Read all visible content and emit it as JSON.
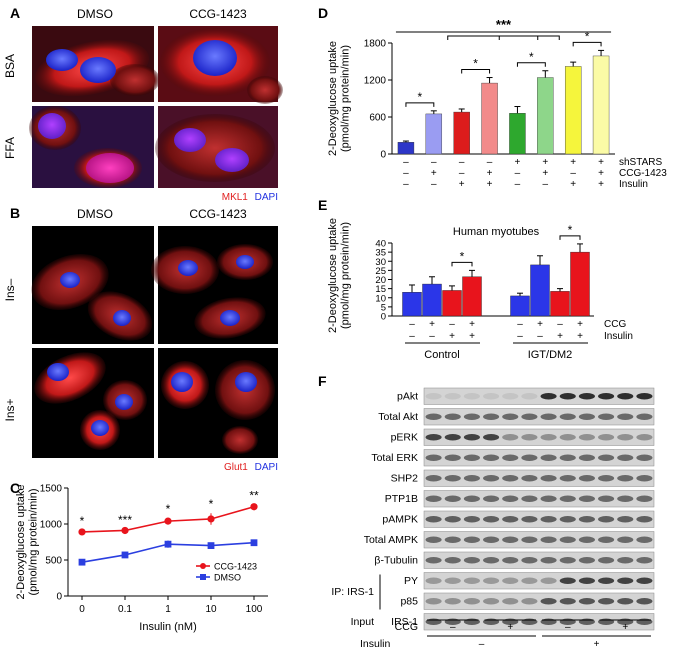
{
  "panel_labels": [
    "A",
    "B",
    "C",
    "D",
    "E",
    "F"
  ],
  "panel_a": {
    "columns": [
      "DMSO",
      "CCG-1423"
    ],
    "rows": [
      "BSA",
      "FFA"
    ],
    "legend": [
      {
        "text": "MKL1",
        "color": "#e02020"
      },
      {
        "text": "DAPI",
        "color": "#2030e0"
      }
    ]
  },
  "panel_b": {
    "columns": [
      "DMSO",
      "CCG-1423"
    ],
    "rows": [
      "Ins–",
      "Ins+"
    ],
    "legend": [
      {
        "text": "Glut1",
        "color": "#e02020"
      },
      {
        "text": "DAPI",
        "color": "#2030e0"
      }
    ]
  },
  "panel_f": {
    "blot_labels": [
      "pAkt",
      "Total Akt",
      "pERK",
      "Total ERK",
      "SHP2",
      "PTP1B",
      "pAMPK",
      "Total AMPK",
      "β-Tubulin"
    ],
    "ip_label": "IP: IRS-1",
    "ip_rows": [
      "PY",
      "p85"
    ],
    "input_label": "Input",
    "input_rows": [
      "IRS-1"
    ],
    "ccg_label": "CCG",
    "insulin_label": "Insulin",
    "ccg_signs": [
      "–",
      "+",
      "–",
      "+"
    ],
    "insulin_signs": [
      "–",
      "+"
    ],
    "lanes": 12,
    "phospho_akt_positive_lanes": [
      7,
      8,
      9,
      10,
      11,
      12
    ]
  },
  "chart_data": [
    {
      "panel": "C",
      "type": "line",
      "xlabel": "Insulin (nM)",
      "ylabel": "2-Deoxyglucose uptake\n(pmol/mg protein/min)",
      "x_ticks": [
        "0",
        "0.1",
        "1",
        "10",
        "100"
      ],
      "ylim": [
        0,
        1500
      ],
      "y_ticks": [
        0,
        500,
        1000,
        1500
      ],
      "series": [
        {
          "name": "CCG-1423",
          "color": "#e8141c",
          "marker": "circle",
          "values": [
            890,
            910,
            1040,
            1070,
            1240
          ],
          "errors": [
            30,
            20,
            40,
            80,
            30
          ]
        },
        {
          "name": "DMSO",
          "color": "#2b3fe0",
          "marker": "square",
          "values": [
            470,
            570,
            720,
            700,
            740
          ],
          "errors": [
            20,
            20,
            50,
            30,
            30
          ]
        }
      ],
      "significance": [
        "*",
        "***",
        "*",
        "*",
        "**"
      ],
      "legend_position": "bottom-right"
    },
    {
      "panel": "D",
      "type": "bar",
      "ylabel": "2-Deoxyglucose uptake\n(pmol/mg protein/min)",
      "ylim": [
        0,
        1800
      ],
      "y_ticks": [
        0,
        600,
        1200,
        1800
      ],
      "values": [
        190,
        650,
        680,
        1150,
        660,
        1240,
        1420,
        1590
      ],
      "errors": [
        20,
        50,
        50,
        90,
        110,
        110,
        70,
        90
      ],
      "colors": [
        "#2d36c8",
        "#9a9cf2",
        "#dc1c1c",
        "#f28a8a",
        "#2ea82e",
        "#8ed68a",
        "#f5f53c",
        "#fbfba6"
      ],
      "condition_rows": [
        {
          "label": "shSTARS",
          "signs": [
            "–",
            "–",
            "–",
            "–",
            "+",
            "+",
            "+",
            "+"
          ]
        },
        {
          "label": "CCG-1423",
          "signs": [
            "–",
            "+",
            "–",
            "+",
            "–",
            "+",
            "–",
            "+"
          ]
        },
        {
          "label": "Insulin",
          "signs": [
            "–",
            "–",
            "+",
            "+",
            "–",
            "–",
            "+",
            "+"
          ]
        }
      ],
      "pair_significance": [
        {
          "bars": [
            0,
            1
          ],
          "label": "*"
        },
        {
          "bars": [
            2,
            3
          ],
          "label": "*"
        },
        {
          "bars": [
            4,
            5
          ],
          "label": "*"
        },
        {
          "bars": [
            6,
            7
          ],
          "label": "*"
        }
      ],
      "group_significance": "***"
    },
    {
      "panel": "E",
      "type": "bar",
      "title": "Human myotubes",
      "ylabel": "2-Deoxyglucose uptake\n(pmol/mg protein/min)",
      "ylim": [
        0,
        40
      ],
      "y_ticks": [
        0,
        5,
        10,
        15,
        20,
        25,
        30,
        35,
        40
      ],
      "groups": [
        "Control",
        "IGT/DM2"
      ],
      "values": [
        13,
        17.5,
        14,
        21.5,
        11,
        28,
        13.5,
        35
      ],
      "errors": [
        4,
        4,
        2.5,
        3.5,
        1.5,
        5,
        1.5,
        4.5
      ],
      "colors": [
        "#2b36e8",
        "#2b36e8",
        "#e8141c",
        "#e8141c",
        "#2b36e8",
        "#2b36e8",
        "#e8141c",
        "#e8141c"
      ],
      "condition_rows": [
        {
          "label": "CCG",
          "signs": [
            "–",
            "+",
            "–",
            "+",
            "–",
            "+",
            "–",
            "+"
          ]
        },
        {
          "label": "Insulin",
          "signs": [
            "–",
            "–",
            "+",
            "+",
            "–",
            "–",
            "+",
            "+"
          ]
        }
      ],
      "pair_significance": [
        {
          "bars": [
            2,
            3
          ],
          "label": "*"
        },
        {
          "bars": [
            6,
            7
          ],
          "label": "*"
        }
      ]
    }
  ]
}
